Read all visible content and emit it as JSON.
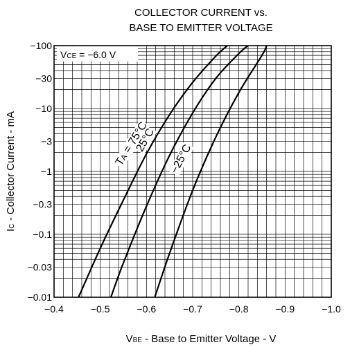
{
  "chart_data": {
    "type": "line",
    "title_line1": "COLLECTOR CURRENT vs.",
    "title_line2": "BASE TO EMITTER VOLTAGE",
    "xlabel": {
      "main": "V",
      "sub": "BE",
      "rest": " - Base to Emitter Voltage - V"
    },
    "ylabel": {
      "main": "I",
      "sub": "C",
      "rest": " - Collector Current - mA"
    },
    "condition": {
      "main": "V",
      "sub": "CE",
      "rest": " = −6.0 V"
    },
    "x_axis": {
      "range": [
        -0.4,
        -1.0
      ],
      "ticks": [
        -0.4,
        -0.5,
        -0.6,
        -0.7,
        -0.8,
        -0.9,
        -1.0
      ],
      "tick_labels": [
        "−0.4",
        "−0.5",
        "−0.6",
        "−0.7",
        "−0.8",
        "−0.9",
        "−1.0"
      ],
      "minor_step": 0.02
    },
    "y_axis": {
      "scale": "log",
      "range": [
        -0.01,
        -100
      ],
      "ticks": [
        -0.01,
        -0.03,
        -0.1,
        -0.3,
        -1,
        -3,
        -10,
        -30,
        -100
      ],
      "tick_labels": [
        "−0.01",
        "−0.03",
        "−0.1",
        "−0.3",
        "−1",
        "−3",
        "−10",
        "−30",
        "−100"
      ]
    },
    "grid": true,
    "series": [
      {
        "name": "TA = 75°C",
        "label": {
          "pre": "T",
          "sub": "A",
          "post": " = 75°C"
        },
        "points": [
          [
            -0.453,
            -0.01
          ],
          [
            -0.5,
            -0.06
          ],
          [
            -0.55,
            -0.35
          ],
          [
            -0.6,
            -1.9
          ],
          [
            -0.65,
            -8
          ],
          [
            -0.7,
            -26
          ],
          [
            -0.75,
            -68
          ],
          [
            -0.775,
            -100
          ]
        ]
      },
      {
        "name": "25°C",
        "label": {
          "pre": "25°C",
          "sub": "",
          "post": ""
        },
        "points": [
          [
            -0.523,
            -0.01
          ],
          [
            -0.55,
            -0.035
          ],
          [
            -0.6,
            -0.28
          ],
          [
            -0.65,
            -1.8
          ],
          [
            -0.7,
            -8.5
          ],
          [
            -0.75,
            -30
          ],
          [
            -0.8,
            -75
          ],
          [
            -0.82,
            -100
          ]
        ]
      },
      {
        "name": "−25°C",
        "label": {
          "pre": "−25°C",
          "sub": "",
          "post": ""
        },
        "points": [
          [
            -0.618,
            -0.01
          ],
          [
            -0.65,
            -0.05
          ],
          [
            -0.7,
            -0.5
          ],
          [
            -0.75,
            -3.5
          ],
          [
            -0.8,
            -18
          ],
          [
            -0.85,
            -70
          ],
          [
            -0.86,
            -100
          ]
        ]
      }
    ]
  }
}
